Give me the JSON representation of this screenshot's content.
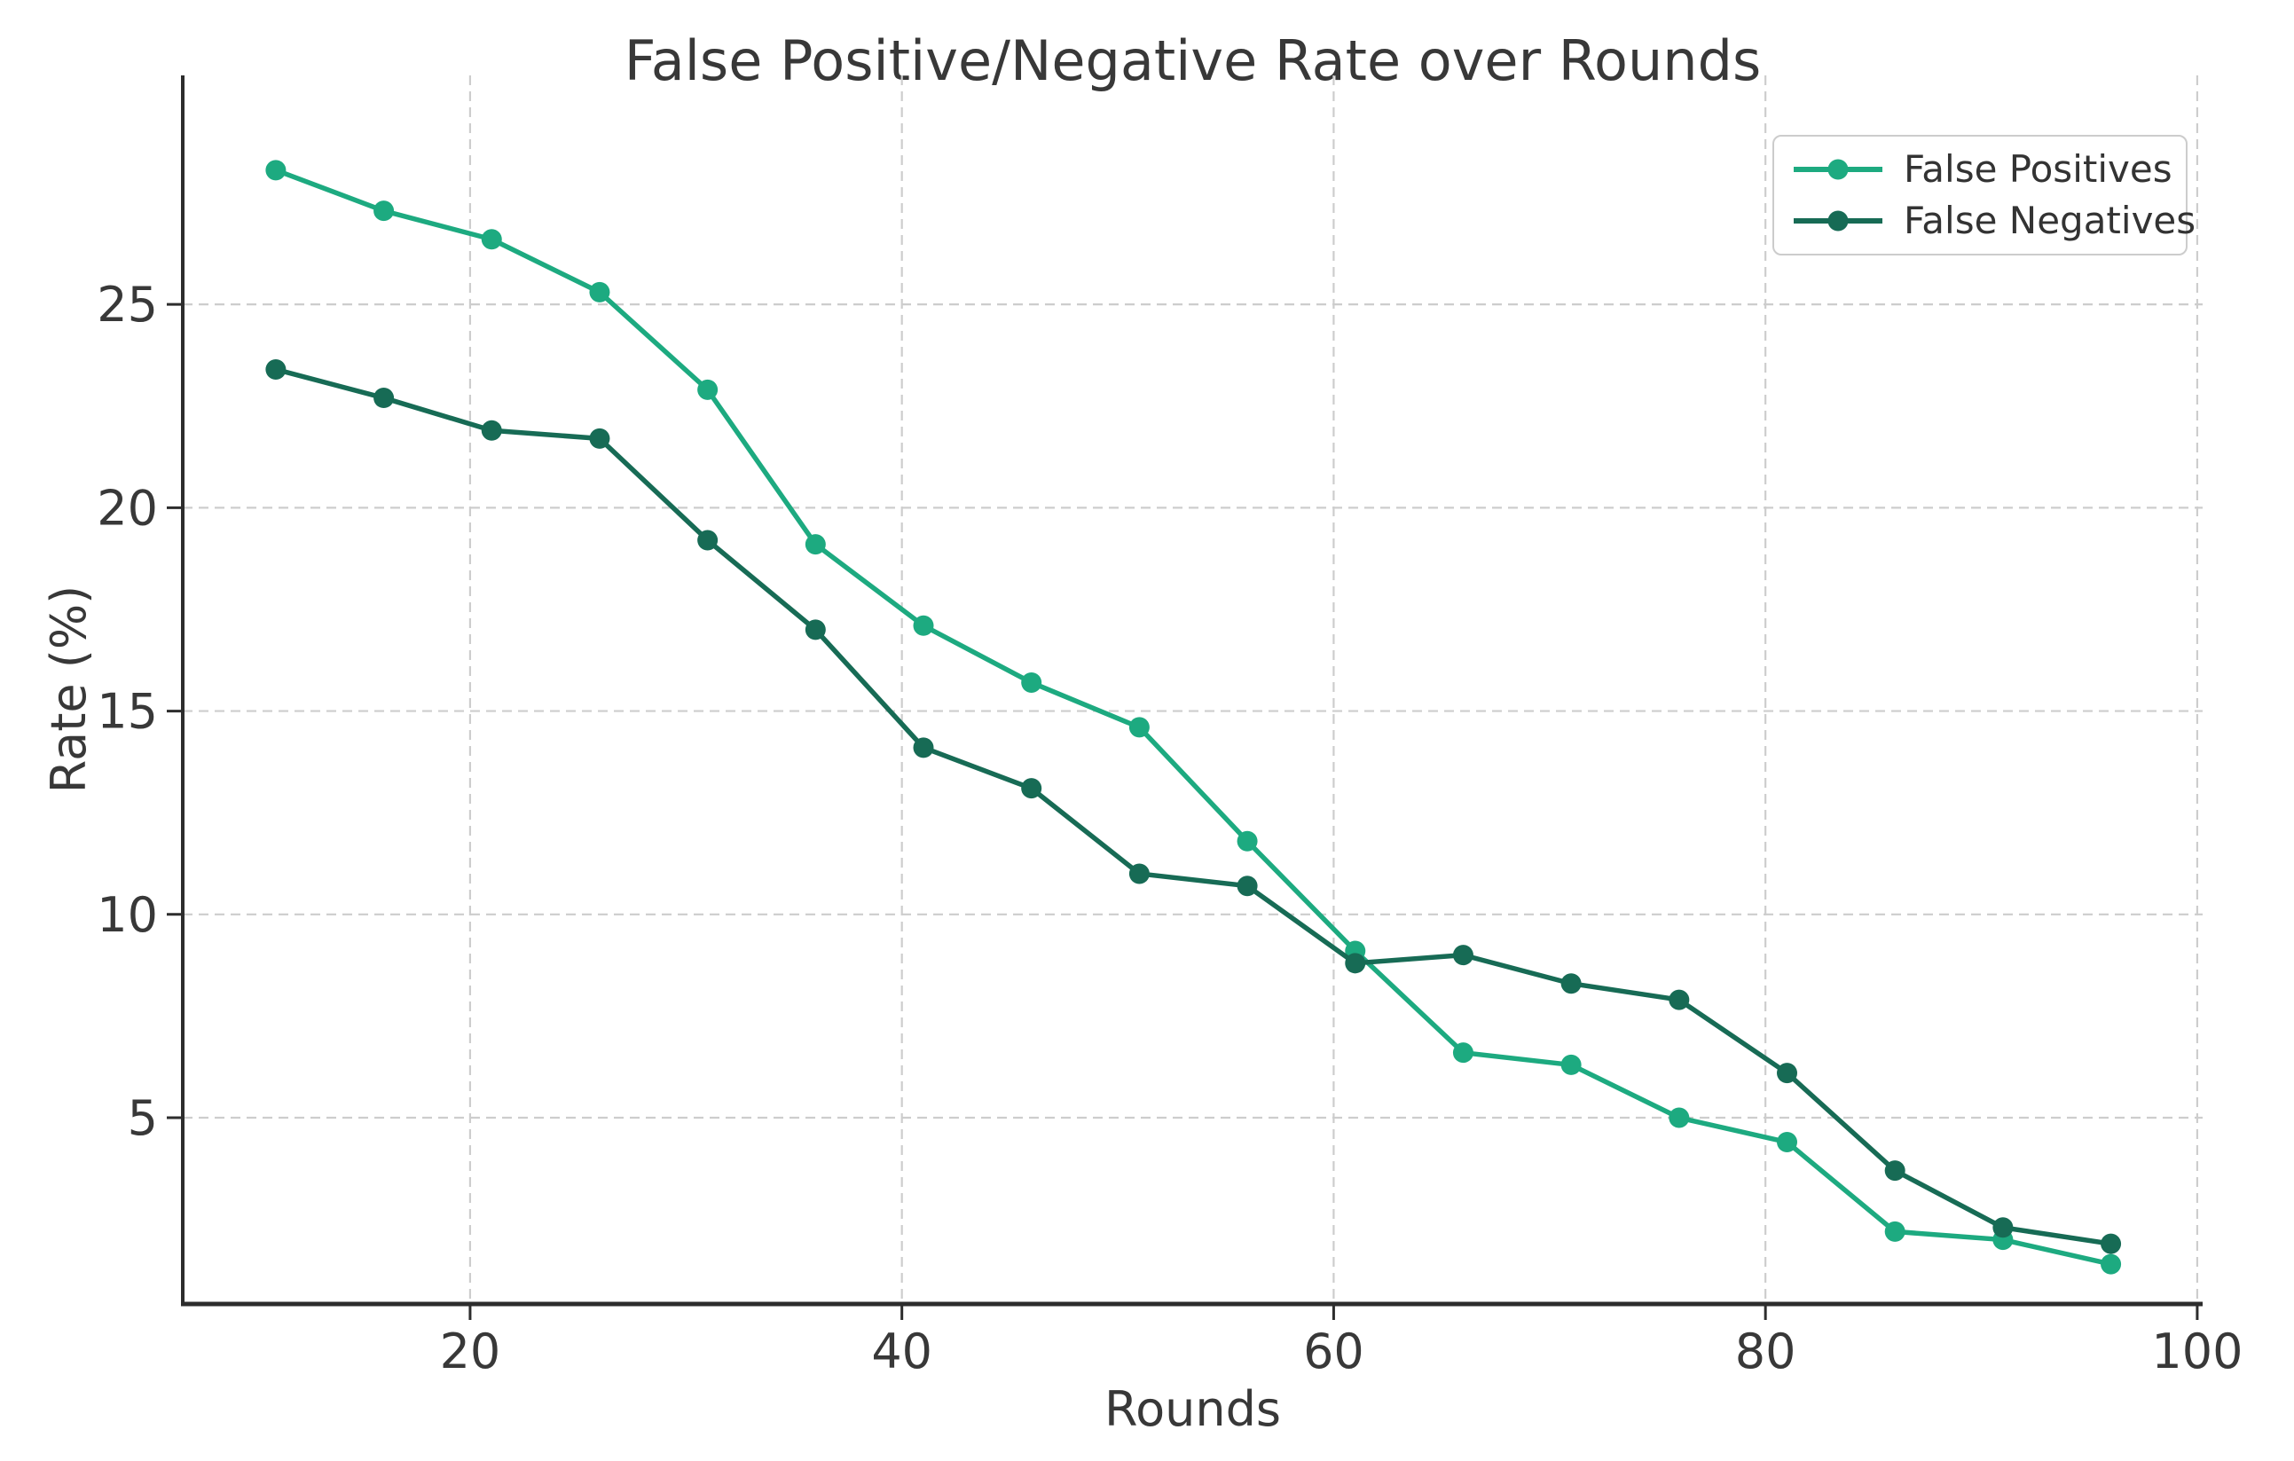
{
  "style": {
    "background": "#ffffff",
    "grid_color": "#cdcdcd",
    "spine_color": "#2d2d2d",
    "tick_color": "#2d2d2d",
    "text_color": "#383838",
    "legend_border_color": "#cccccc"
  },
  "chart_data": {
    "type": "line",
    "title": "False Positive/Negative Rate over Rounds",
    "xlabel": "Rounds",
    "ylabel": "Rate (%)",
    "x": [
      11,
      16,
      21,
      26,
      31,
      36,
      41,
      46,
      51,
      56,
      61,
      66,
      71,
      76,
      81,
      86,
      91,
      96
    ],
    "series": [
      {
        "name": "False Positives",
        "color": "#1daa80",
        "values": [
          28.3,
          27.3,
          26.6,
          25.3,
          22.9,
          19.1,
          17.1,
          15.7,
          14.6,
          11.8,
          9.1,
          6.6,
          6.3,
          5.0,
          4.4,
          2.2,
          2.0,
          1.4
        ]
      },
      {
        "name": "False Negatives",
        "color": "#176b55",
        "values": [
          23.4,
          22.7,
          21.9,
          21.7,
          19.2,
          17.0,
          14.1,
          13.1,
          11.0,
          10.7,
          8.8,
          9.0,
          8.3,
          7.9,
          6.1,
          3.7,
          2.3,
          1.9
        ]
      }
    ],
    "xticks": [
      20,
      40,
      60,
      80,
      100
    ],
    "yticks": [
      5,
      10,
      15,
      20,
      25
    ],
    "xlim": [
      6.69,
      100.25
    ],
    "ylim": [
      0.42,
      30.63
    ],
    "grid": true,
    "grid_style": "dashed",
    "legend_position": "upper right",
    "marker": "o",
    "line_width": 5.5,
    "marker_radius": 11.5
  }
}
